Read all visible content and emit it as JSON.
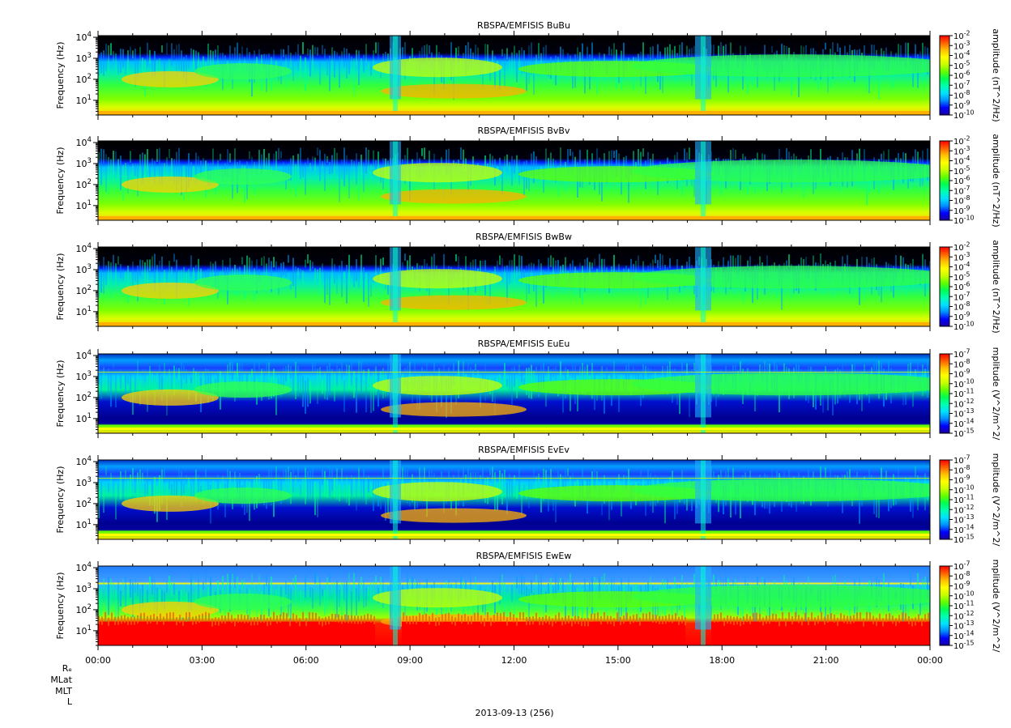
{
  "chart_data": [
    {
      "type": "heatmap",
      "title": "RBSPA/EMFISIS  BuBu",
      "ylabel": "Frequency (Hz)",
      "colorbar_label": "amplitude (nT^2/Hz)",
      "y_scale": "log",
      "ylim": [
        2,
        12000
      ],
      "y_ticks": [
        "10^1",
        "10^2",
        "10^3",
        "10^4"
      ],
      "colorbar_ticks": [
        "10^-2",
        "10^-3",
        "10^-4",
        "10^-5",
        "10^-6",
        "10^-7",
        "10^-8",
        "10^-9",
        "10^-10"
      ],
      "colorbar_exponents": [
        -2,
        -10
      ],
      "xlim": [
        "00:00",
        "24:00"
      ]
    },
    {
      "type": "heatmap",
      "title": "RBSPA/EMFISIS  BvBv",
      "ylabel": "Frequency (Hz)",
      "colorbar_label": "amplitude (nT^2/Hz)",
      "y_scale": "log",
      "ylim": [
        2,
        12000
      ],
      "y_ticks": [
        "10^1",
        "10^2",
        "10^3",
        "10^4"
      ],
      "colorbar_ticks": [
        "10^-2",
        "10^-3",
        "10^-4",
        "10^-5",
        "10^-6",
        "10^-7",
        "10^-8",
        "10^-9",
        "10^-10"
      ],
      "colorbar_exponents": [
        -2,
        -10
      ],
      "xlim": [
        "00:00",
        "24:00"
      ]
    },
    {
      "type": "heatmap",
      "title": "RBSPA/EMFISIS  BwBw",
      "ylabel": "Frequency (Hz)",
      "colorbar_label": "amplitude (nT^2/Hz)",
      "y_scale": "log",
      "ylim": [
        2,
        12000
      ],
      "y_ticks": [
        "10^1",
        "10^2",
        "10^3",
        "10^4"
      ],
      "colorbar_ticks": [
        "10^-2",
        "10^-3",
        "10^-4",
        "10^-5",
        "10^-6",
        "10^-7",
        "10^-8",
        "10^-9",
        "10^-10"
      ],
      "colorbar_exponents": [
        -2,
        -10
      ],
      "xlim": [
        "00:00",
        "24:00"
      ]
    },
    {
      "type": "heatmap",
      "title": "RBSPA/EMFISIS  EuEu",
      "ylabel": "Frequency (Hz)",
      "colorbar_label": "mplitude (V^2/m^2/",
      "y_scale": "log",
      "ylim": [
        2,
        12000
      ],
      "y_ticks": [
        "10^1",
        "10^2",
        "10^3",
        "10^4"
      ],
      "colorbar_ticks": [
        "10^-7",
        "10^-8",
        "10^-9",
        "10^-10",
        "10^-11",
        "10^-12",
        "10^-13",
        "10^-14",
        "10^-15"
      ],
      "colorbar_exponents": [
        -7,
        -15
      ],
      "xlim": [
        "00:00",
        "24:00"
      ]
    },
    {
      "type": "heatmap",
      "title": "RBSPA/EMFISIS  EvEv",
      "ylabel": "Frequency (Hz)",
      "colorbar_label": "mplitude (V^2/m^2/",
      "y_scale": "log",
      "ylim": [
        2,
        12000
      ],
      "y_ticks": [
        "10^1",
        "10^2",
        "10^3",
        "10^4"
      ],
      "colorbar_ticks": [
        "10^-7",
        "10^-8",
        "10^-9",
        "10^-10",
        "10^-11",
        "10^-12",
        "10^-13",
        "10^-14",
        "10^-15"
      ],
      "colorbar_exponents": [
        -7,
        -15
      ],
      "xlim": [
        "00:00",
        "24:00"
      ]
    },
    {
      "type": "heatmap",
      "title": "RBSPA/EMFISIS  EwEw",
      "ylabel": "Frequency (Hz)",
      "colorbar_label": "mplitude (V^2/m^2/",
      "y_scale": "log",
      "ylim": [
        2,
        12000
      ],
      "y_ticks": [
        "10^1",
        "10^2",
        "10^3",
        "10^4"
      ],
      "colorbar_ticks": [
        "10^-7",
        "10^-8",
        "10^-9",
        "10^-10",
        "10^-11",
        "10^-12",
        "10^-13",
        "10^-14",
        "10^-15"
      ],
      "colorbar_exponents": [
        -7,
        -15
      ],
      "xlim": [
        "00:00",
        "24:00"
      ]
    }
  ],
  "x_tick_labels": [
    "00:00",
    "03:00",
    "06:00",
    "09:00",
    "12:00",
    "15:00",
    "18:00",
    "21:00",
    "00:00"
  ],
  "ephemeris_labels": [
    "Rₑ",
    "MLat",
    "MLT",
    "L"
  ],
  "date_label": "2013-09-13 (256)",
  "colormap": [
    "#1a00a0",
    "#0000ff",
    "#0090ff",
    "#00e0ff",
    "#00ffb0",
    "#00ff50",
    "#60ff00",
    "#c8ff00",
    "#ffff00",
    "#ffc000",
    "#ff6000",
    "#ff0000"
  ],
  "background_color": "#000000"
}
